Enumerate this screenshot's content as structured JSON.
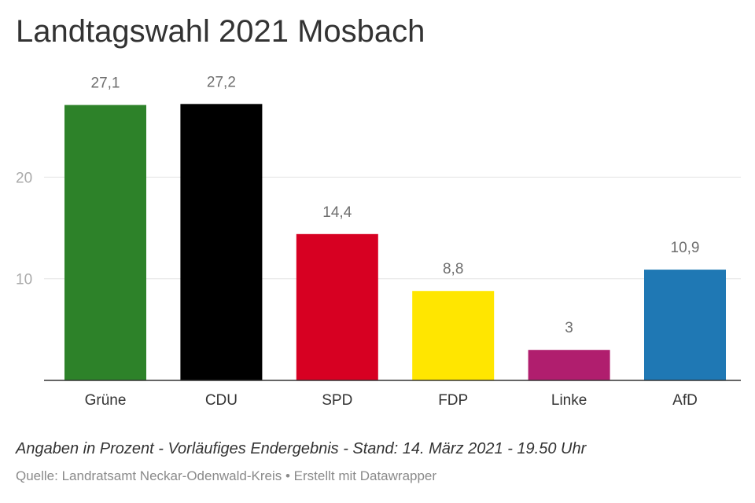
{
  "title": "Landtagswahl 2021 Mosbach",
  "notes": "Angaben in Prozent - Vorläufiges Endergebnis - Stand: 14. März 2021 - 19.50 Uhr",
  "source_line": "Quelle: Landratsamt Neckar-Odenwald-Kreis • Erstellt mit Datawrapper",
  "chart_data": {
    "type": "bar",
    "title": "Landtagswahl 2021 Mosbach",
    "xlabel": "",
    "ylabel": "",
    "categories": [
      "Grüne",
      "CDU",
      "SPD",
      "FDP",
      "Linke",
      "AfD"
    ],
    "values": [
      27.1,
      27.2,
      14.4,
      8.8,
      3,
      10.9
    ],
    "value_labels": [
      "27,1",
      "27,2",
      "14,4",
      "8,8",
      "3",
      "10,9"
    ],
    "colors": [
      "#2d8229",
      "#000000",
      "#d70022",
      "#ffe600",
      "#b01e6e",
      "#1f78b4"
    ],
    "ylim": [
      0,
      30
    ],
    "y_ticks": [
      10,
      20
    ],
    "y_tick_labels": [
      "10",
      "20"
    ],
    "grid": true,
    "legend": "none"
  }
}
